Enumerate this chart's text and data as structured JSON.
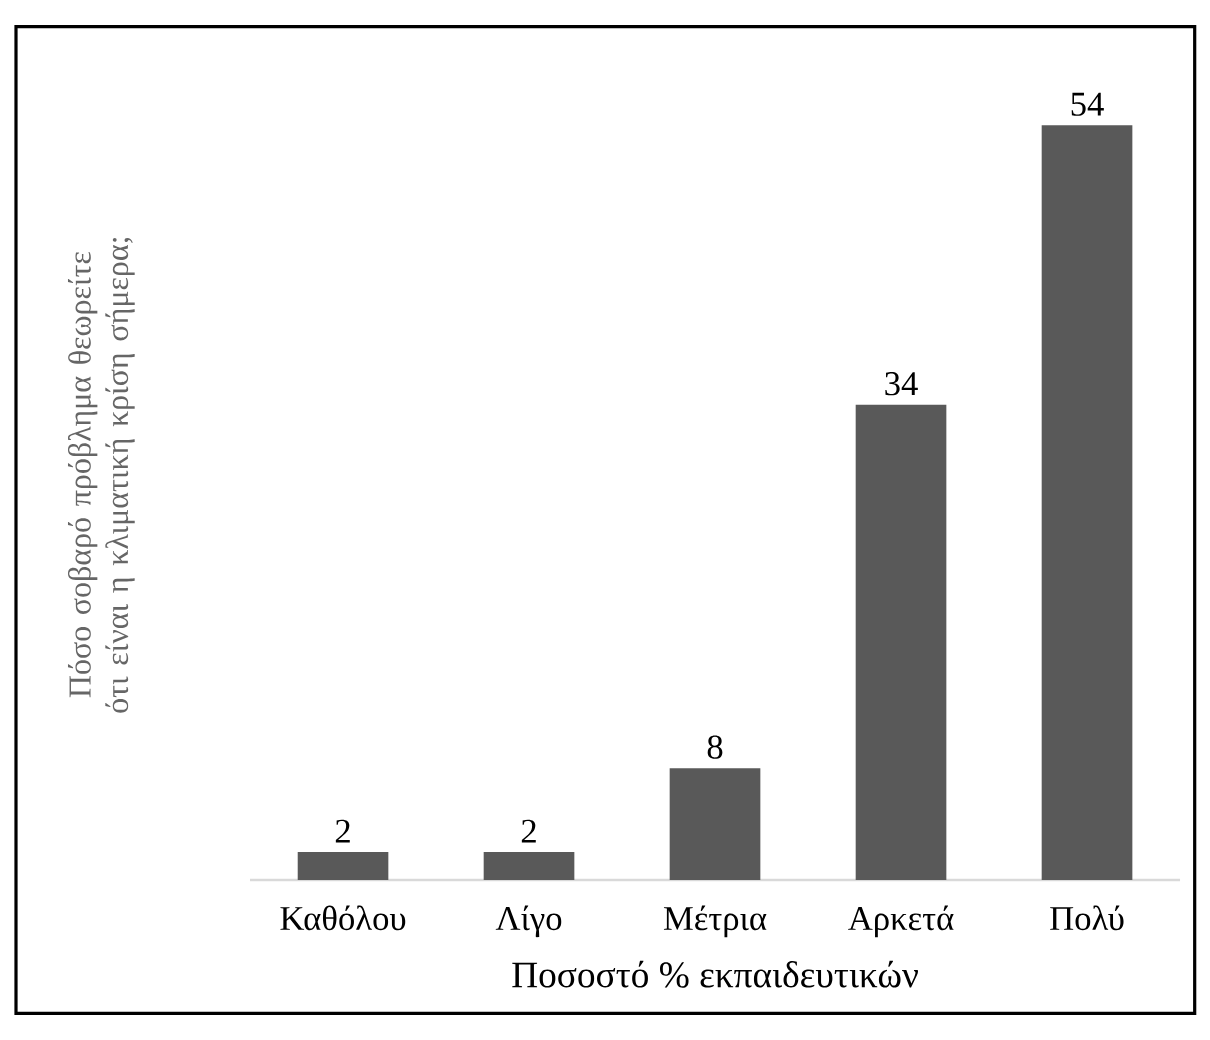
{
  "chart_data": {
    "type": "bar",
    "xlabel": "Ποσοστό % εκπαιδευτικών",
    "ylabel": "Πόσο σοβαρό πρόβλημα θεωρείτε ότι είναι η κλιματική κρίση σήμερα;",
    "categories": [
      "Καθόλου",
      "Λίγο",
      "Μέτρια",
      "Αρκετά",
      "Πολύ"
    ],
    "values": [
      2,
      2,
      8,
      34,
      54
    ],
    "color": "#595959",
    "data_labels": true
  }
}
